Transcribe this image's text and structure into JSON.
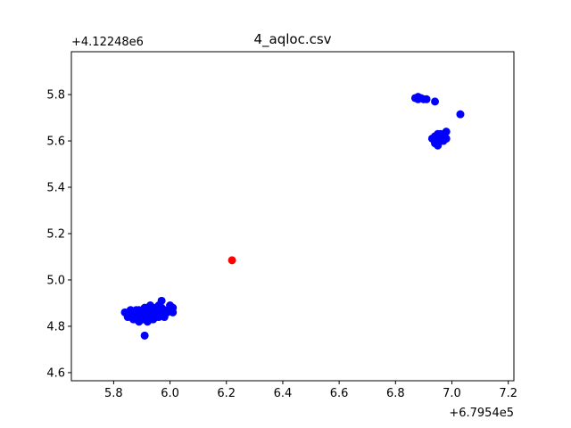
{
  "chart_data": {
    "type": "scatter",
    "title": "4_aqloc.csv",
    "xlabel": "",
    "ylabel": "",
    "x_offset_label": "+6.7954e5",
    "y_offset_label": "+4.12248e6",
    "xlim": [
      5.65,
      7.22
    ],
    "ylim": [
      4.565,
      5.985
    ],
    "xticks": [
      5.8,
      6.0,
      6.2,
      6.4,
      6.6,
      6.8,
      7.0,
      7.2
    ],
    "yticks": [
      4.6,
      4.8,
      5.0,
      5.2,
      5.4,
      5.6,
      5.8
    ],
    "xtick_labels": [
      "5.8",
      "6.0",
      "6.2",
      "6.4",
      "6.6",
      "6.8",
      "7.0",
      "7.2"
    ],
    "ytick_labels": [
      "4.6",
      "4.8",
      "5.0",
      "5.2",
      "5.4",
      "5.6",
      "5.8"
    ],
    "grid": false,
    "series": [
      {
        "color": "#0000ff",
        "points": [
          [
            5.84,
            4.86
          ],
          [
            5.85,
            4.84
          ],
          [
            5.86,
            4.85
          ],
          [
            5.87,
            4.83
          ],
          [
            5.88,
            4.87
          ],
          [
            5.89,
            4.82
          ],
          [
            5.9,
            4.86
          ],
          [
            5.9,
            4.84
          ],
          [
            5.91,
            4.88
          ],
          [
            5.91,
            4.83
          ],
          [
            5.92,
            4.85
          ],
          [
            5.92,
            4.87
          ],
          [
            5.93,
            4.84
          ],
          [
            5.93,
            4.86
          ],
          [
            5.94,
            4.88
          ],
          [
            5.94,
            4.83
          ],
          [
            5.95,
            4.85
          ],
          [
            5.95,
            4.87
          ],
          [
            5.96,
            4.86
          ],
          [
            5.96,
            4.84
          ],
          [
            5.97,
            4.91
          ],
          [
            5.97,
            4.88
          ],
          [
            5.98,
            4.85
          ],
          [
            5.98,
            4.87
          ],
          [
            5.99,
            4.86
          ],
          [
            6.0,
            4.89
          ],
          [
            6.0,
            4.87
          ],
          [
            6.01,
            4.88
          ],
          [
            6.01,
            4.86
          ],
          [
            5.89,
            4.87
          ],
          [
            5.88,
            4.85
          ],
          [
            5.87,
            4.86
          ],
          [
            5.86,
            4.87
          ],
          [
            5.93,
            4.89
          ],
          [
            5.95,
            4.84
          ],
          [
            5.96,
            4.89
          ],
          [
            5.98,
            4.84
          ],
          [
            5.92,
            4.82
          ],
          [
            5.9,
            4.83
          ],
          [
            5.91,
            4.76
          ],
          [
            6.87,
            5.785
          ],
          [
            6.88,
            5.78
          ],
          [
            6.88,
            5.79
          ],
          [
            6.89,
            5.785
          ],
          [
            6.9,
            5.78
          ],
          [
            6.91,
            5.78
          ],
          [
            6.94,
            5.77
          ],
          [
            6.93,
            5.61
          ],
          [
            6.94,
            5.6
          ],
          [
            6.94,
            5.62
          ],
          [
            6.95,
            5.58
          ],
          [
            6.95,
            5.61
          ],
          [
            6.96,
            5.63
          ],
          [
            6.96,
            5.6
          ],
          [
            6.97,
            5.62
          ],
          [
            6.97,
            5.6
          ],
          [
            6.98,
            5.64
          ],
          [
            6.98,
            5.61
          ],
          [
            6.95,
            5.63
          ],
          [
            6.94,
            5.59
          ],
          [
            7.03,
            5.715
          ]
        ]
      },
      {
        "color": "#ff0000",
        "points": [
          [
            6.22,
            5.085
          ]
        ]
      }
    ]
  }
}
